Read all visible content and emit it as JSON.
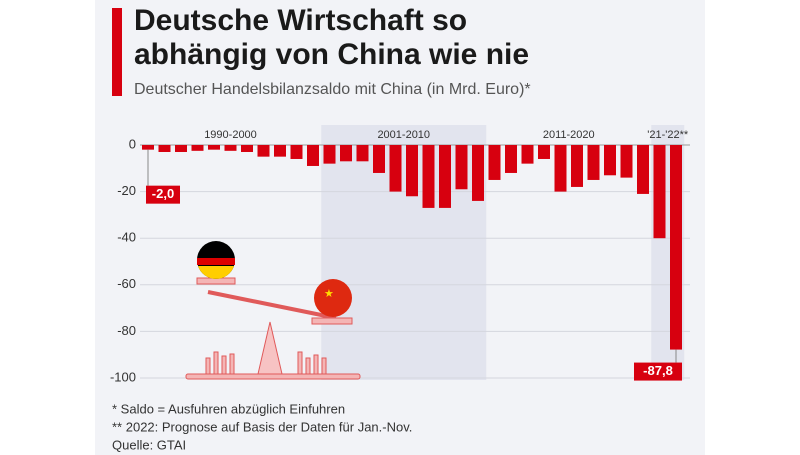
{
  "chart_data": {
    "type": "bar",
    "title": [
      "Deutsche Wirtschaft so",
      "abhängig von China wie nie"
    ],
    "subtitle": "Deutscher Handelsbilanzsaldo mit China (in Mrd. Euro)*",
    "periods": [
      "1990-2000",
      "2001-2010",
      "2011-2020",
      "'21-'22**"
    ],
    "categories": [
      null,
      null,
      null,
      null,
      null,
      null,
      null,
      null,
      null,
      null,
      null,
      null,
      null,
      null,
      null,
      null,
      null,
      null,
      null,
      null,
      null,
      null,
      null,
      null,
      null,
      null,
      null,
      null,
      null,
      null,
      null,
      null,
      null
    ],
    "values": [
      -2.0,
      -3,
      -3,
      -2.5,
      -2,
      -2.5,
      -3,
      -5,
      -5,
      -6,
      -9,
      -8,
      -7,
      -7,
      -12,
      -20,
      -22,
      -27,
      -27,
      -19,
      -24,
      -15,
      -12,
      -8,
      -6,
      -20,
      -18,
      -15,
      -13,
      -14,
      -21,
      -40,
      -87.8
    ],
    "value_labels": [
      "-2,0",
      null,
      null,
      null,
      null,
      null,
      null,
      null,
      null,
      null,
      null,
      null,
      null,
      null,
      null,
      null,
      null,
      null,
      null,
      null,
      null,
      null,
      null,
      null,
      null,
      null,
      null,
      null,
      null,
      null,
      null,
      null,
      "-87,8"
    ],
    "color": "#d7000f",
    "ylim": [
      -100,
      0
    ],
    "yticks": [
      0,
      -20,
      -40,
      -60,
      -80,
      -100
    ],
    "grid": true,
    "footnotes": [
      "*   Saldo = Ausfuhren abzüglich Einfuhren",
      "** 2022: Prognose auf Basis der Daten für Jan.-Nov.",
      "Quelle: GTAI"
    ]
  }
}
